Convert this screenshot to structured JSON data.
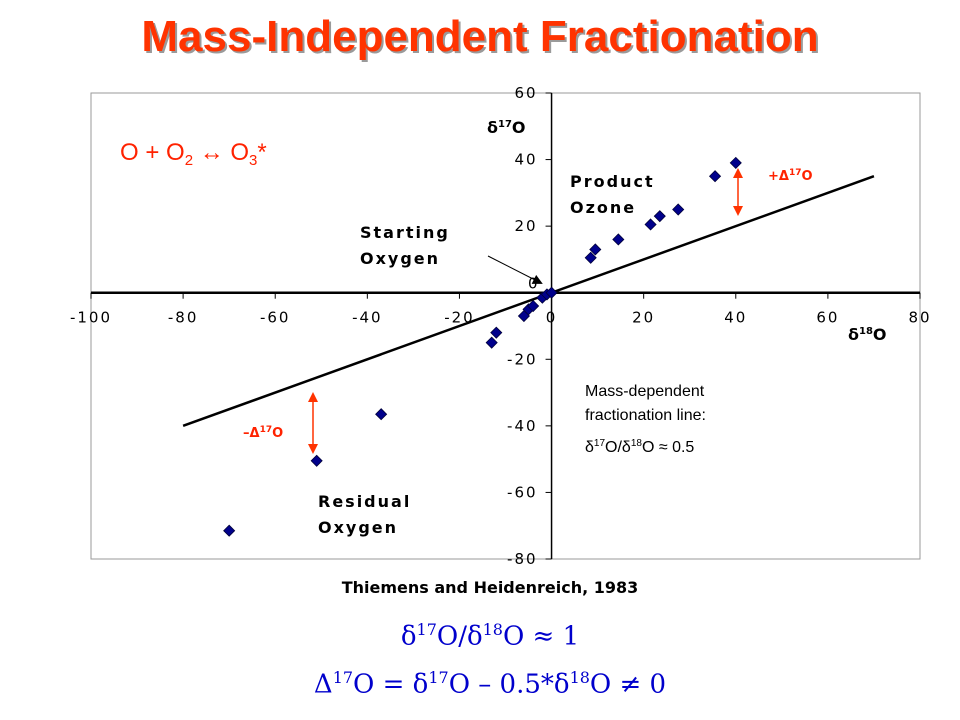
{
  "slide": {
    "title": "Mass-Independent Fractionation",
    "citation": "Thiemens and Heidenreich, 1983",
    "reaction": "O + O₂ ↔ O₃*"
  },
  "formulas": [
    {
      "parts": [
        "δ",
        "17",
        "O/δ",
        "18",
        "O  ≈ 1"
      ]
    },
    {
      "parts": [
        "Δ",
        "17",
        "O = δ",
        "17",
        "O – 0.5*δ",
        "18",
        "O ≠ 0"
      ]
    }
  ],
  "chart_data": {
    "type": "scatter",
    "title": "",
    "x_axis_label": "δ¹⁸O",
    "y_axis_label": "δ¹⁷O",
    "xlim": [
      -100,
      80
    ],
    "ylim": [
      -80,
      60
    ],
    "x_ticks": [
      -100,
      -80,
      -60,
      -40,
      -20,
      0,
      20,
      40,
      60,
      80
    ],
    "y_ticks": [
      -80,
      -60,
      -40,
      -20,
      0,
      20,
      40,
      60
    ],
    "grid": false,
    "colors": {
      "points": "#00008b",
      "line": "#000000",
      "arrows": "#ff3300",
      "text_red": "#ff2200"
    },
    "points": [
      {
        "x": -70,
        "y": -71.5
      },
      {
        "x": -51,
        "y": -50.5
      },
      {
        "x": -37,
        "y": -36.5
      },
      {
        "x": -13,
        "y": -15
      },
      {
        "x": -12,
        "y": -12
      },
      {
        "x": -6,
        "y": -7
      },
      {
        "x": -5,
        "y": -5
      },
      {
        "x": -4,
        "y": -4
      },
      {
        "x": -2,
        "y": -1.5
      },
      {
        "x": -1,
        "y": -0.5
      },
      {
        "x": 0,
        "y": 0
      },
      {
        "x": 8.5,
        "y": 10.5
      },
      {
        "x": 9.5,
        "y": 13
      },
      {
        "x": 14.5,
        "y": 16
      },
      {
        "x": 21.5,
        "y": 20.5
      },
      {
        "x": 23.5,
        "y": 23
      },
      {
        "x": 27.5,
        "y": 25
      },
      {
        "x": 35.5,
        "y": 35
      },
      {
        "x": 40,
        "y": 39
      }
    ],
    "line": {
      "slope": 0.5,
      "x_range": [
        -80,
        70
      ],
      "label": "Mass-dependent fractionation line:",
      "label_ratio": "δ¹⁷O/δ¹⁸O ≈ 0.5"
    },
    "annotations": {
      "starting_oxygen": [
        "Starting",
        "Oxygen"
      ],
      "product_ozone": [
        "Product",
        "Ozone"
      ],
      "residual_oxygen": [
        "Residual",
        "Oxygen"
      ],
      "plus_delta": "+Δ¹⁷O",
      "minus_delta": "–Δ¹⁷O"
    }
  }
}
